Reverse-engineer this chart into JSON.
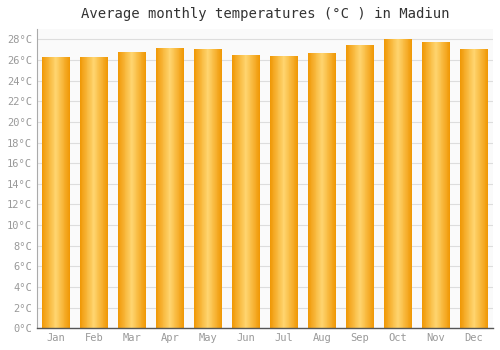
{
  "title": "Average monthly temperatures (°C ) in Madiun",
  "months": [
    "Jan",
    "Feb",
    "Mar",
    "Apr",
    "May",
    "Jun",
    "Jul",
    "Aug",
    "Sep",
    "Oct",
    "Nov",
    "Dec"
  ],
  "values": [
    26.3,
    26.3,
    26.8,
    27.2,
    27.1,
    26.5,
    26.4,
    26.7,
    27.5,
    28.0,
    27.7,
    27.1
  ],
  "bar_color_center": "#FFD070",
  "bar_color_edge": "#F5A000",
  "background_color": "#FFFFFF",
  "plot_bg_color": "#FAFAFA",
  "grid_color": "#DDDDDD",
  "title_color": "#333333",
  "tick_label_color": "#999999",
  "ylim": [
    0,
    29
  ],
  "ytick_step": 2,
  "title_fontsize": 10,
  "tick_fontsize": 7.5,
  "bar_width": 0.72
}
